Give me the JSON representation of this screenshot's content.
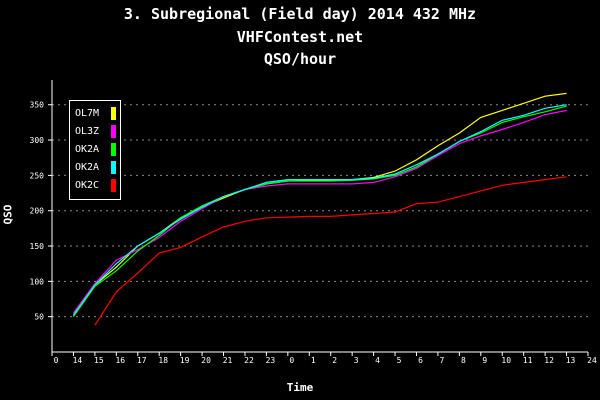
{
  "chart_data": {
    "type": "line",
    "title": "3. Subregional (Field day) 2014 432 MHz",
    "subtitle": "VHFContest.net",
    "subtitle2": "QSO/hour",
    "xlabel": "Time",
    "ylabel": "QSO",
    "x_ticks": [
      "0",
      "14",
      "15",
      "16",
      "17",
      "18",
      "19",
      "20",
      "21",
      "22",
      "23",
      "0",
      "1",
      "2",
      "3",
      "4",
      "5",
      "6",
      "7",
      "8",
      "9",
      "10",
      "11",
      "12",
      "13",
      "24"
    ],
    "y_ticks": [
      50,
      100,
      150,
      200,
      250,
      300,
      350
    ],
    "ylim": [
      0,
      385
    ],
    "grid": true,
    "legend_position": "top-left",
    "series": [
      {
        "name": "OL7M",
        "color": "#ffff00",
        "points": [
          [
            14,
            52
          ],
          [
            15,
            95
          ],
          [
            16,
            120
          ],
          [
            17,
            150
          ],
          [
            18,
            168
          ],
          [
            19,
            190
          ],
          [
            20,
            205
          ],
          [
            21,
            218
          ],
          [
            22,
            230
          ],
          [
            23,
            238
          ],
          [
            24,
            242
          ],
          [
            25,
            243
          ],
          [
            26,
            243
          ],
          [
            27,
            244
          ],
          [
            28,
            247
          ],
          [
            29,
            256
          ],
          [
            30,
            272
          ],
          [
            31,
            292
          ],
          [
            32,
            310
          ],
          [
            33,
            332
          ],
          [
            34,
            342
          ],
          [
            35,
            352
          ],
          [
            36,
            362
          ],
          [
            37,
            366
          ]
        ]
      },
      {
        "name": "OL3Z",
        "color": "#ff00ff",
        "points": [
          [
            14,
            55
          ],
          [
            15,
            97
          ],
          [
            16,
            130
          ],
          [
            17,
            145
          ],
          [
            18,
            162
          ],
          [
            19,
            185
          ],
          [
            20,
            203
          ],
          [
            21,
            220
          ],
          [
            22,
            230
          ],
          [
            23,
            235
          ],
          [
            24,
            238
          ],
          [
            25,
            238
          ],
          [
            26,
            238
          ],
          [
            27,
            238
          ],
          [
            28,
            240
          ],
          [
            29,
            248
          ],
          [
            30,
            260
          ],
          [
            31,
            278
          ],
          [
            32,
            295
          ],
          [
            33,
            306
          ],
          [
            34,
            315
          ],
          [
            35,
            325
          ],
          [
            36,
            336
          ],
          [
            37,
            342
          ]
        ]
      },
      {
        "name": "OK2A",
        "color": "#00ff00",
        "points": [
          [
            14,
            50
          ],
          [
            15,
            93
          ],
          [
            16,
            115
          ],
          [
            17,
            143
          ],
          [
            18,
            165
          ],
          [
            19,
            190
          ],
          [
            20,
            207
          ],
          [
            21,
            220
          ],
          [
            22,
            230
          ],
          [
            23,
            238
          ],
          [
            24,
            242
          ],
          [
            25,
            242
          ],
          [
            26,
            242
          ],
          [
            27,
            243
          ],
          [
            28,
            245
          ],
          [
            29,
            250
          ],
          [
            30,
            262
          ],
          [
            31,
            280
          ],
          [
            32,
            298
          ],
          [
            33,
            310
          ],
          [
            34,
            325
          ],
          [
            35,
            333
          ],
          [
            36,
            340
          ],
          [
            37,
            348
          ]
        ]
      },
      {
        "name": "OK2A",
        "color": "#00ffff",
        "points": [
          [
            14,
            52
          ],
          [
            15,
            95
          ],
          [
            16,
            125
          ],
          [
            17,
            150
          ],
          [
            18,
            168
          ],
          [
            19,
            188
          ],
          [
            20,
            205
          ],
          [
            21,
            220
          ],
          [
            22,
            230
          ],
          [
            23,
            240
          ],
          [
            24,
            244
          ],
          [
            25,
            244
          ],
          [
            26,
            244
          ],
          [
            27,
            244
          ],
          [
            28,
            246
          ],
          [
            29,
            252
          ],
          [
            30,
            265
          ],
          [
            31,
            280
          ],
          [
            32,
            298
          ],
          [
            33,
            312
          ],
          [
            34,
            328
          ],
          [
            35,
            335
          ],
          [
            36,
            345
          ],
          [
            37,
            350
          ]
        ]
      },
      {
        "name": "OK2C",
        "color": "#ff0000",
        "points": [
          [
            15,
            38
          ],
          [
            16,
            85
          ],
          [
            17,
            112
          ],
          [
            18,
            140
          ],
          [
            19,
            148
          ],
          [
            20,
            163
          ],
          [
            21,
            177
          ],
          [
            22,
            185
          ],
          [
            23,
            190
          ],
          [
            24,
            191
          ],
          [
            25,
            192
          ],
          [
            26,
            192
          ],
          [
            27,
            194
          ],
          [
            28,
            196
          ],
          [
            29,
            198
          ],
          [
            30,
            210
          ],
          [
            31,
            212
          ],
          [
            32,
            220
          ],
          [
            33,
            228
          ],
          [
            34,
            236
          ],
          [
            35,
            240
          ],
          [
            36,
            244
          ],
          [
            37,
            248
          ]
        ]
      }
    ]
  }
}
